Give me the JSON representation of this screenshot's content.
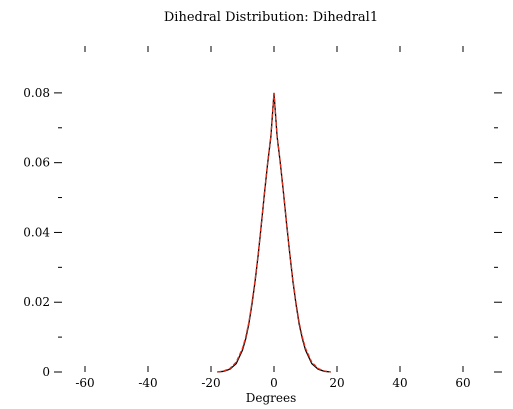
{
  "chart_data": {
    "type": "line",
    "title": "Dihedral Distribution: Dihedral1",
    "xlabel": "Degrees",
    "ylabel": "",
    "xlim": [
      -60,
      60
    ],
    "ylim": [
      0,
      0.09
    ],
    "x_ticks": [
      -60,
      -40,
      -20,
      0,
      20,
      40,
      60
    ],
    "x_tick_labels": [
      "-60",
      "-40",
      "-20",
      "0",
      "20",
      "40",
      "60"
    ],
    "y_ticks": [
      0,
      0.02,
      0.04,
      0.06,
      0.08
    ],
    "y_tick_labels": [
      "0",
      "0.02",
      "0.04",
      "0.06",
      "0.08"
    ],
    "grid": false,
    "legend": "none",
    "series": [
      {
        "color": "#000000",
        "dash": "solid",
        "x": [
          -18,
          -16,
          -14,
          -12,
          -10,
          -9,
          -8,
          -7,
          -6,
          -5,
          -4,
          -3,
          -2,
          -1,
          0,
          1,
          2,
          3,
          4,
          5,
          6,
          7,
          8,
          9,
          10,
          12,
          14,
          16,
          18
        ],
        "y": [
          0,
          0.0002,
          0.0008,
          0.0024,
          0.0063,
          0.0095,
          0.0137,
          0.0193,
          0.026,
          0.0338,
          0.0424,
          0.0513,
          0.0599,
          0.0675,
          0.08,
          0.0675,
          0.0599,
          0.0513,
          0.0424,
          0.0338,
          0.026,
          0.0193,
          0.0137,
          0.0095,
          0.0063,
          0.0024,
          0.0008,
          0.0002,
          0
        ]
      },
      {
        "color": "#e0301e",
        "dash": "dashed",
        "x": [
          -18,
          -16,
          -14,
          -12,
          -10,
          -9,
          -8,
          -7,
          -6,
          -5,
          -4,
          -3,
          -2,
          -1,
          0,
          1,
          2,
          3,
          4,
          5,
          6,
          7,
          8,
          9,
          10,
          12,
          14,
          16,
          18
        ],
        "y": [
          0,
          0.0003,
          0.001,
          0.0028,
          0.0068,
          0.01,
          0.0142,
          0.0198,
          0.0265,
          0.0342,
          0.0428,
          0.0516,
          0.0602,
          0.0678,
          0.08,
          0.0678,
          0.0602,
          0.0516,
          0.0428,
          0.0342,
          0.0265,
          0.0198,
          0.0142,
          0.01,
          0.0068,
          0.0028,
          0.001,
          0.0003,
          0
        ]
      }
    ]
  }
}
